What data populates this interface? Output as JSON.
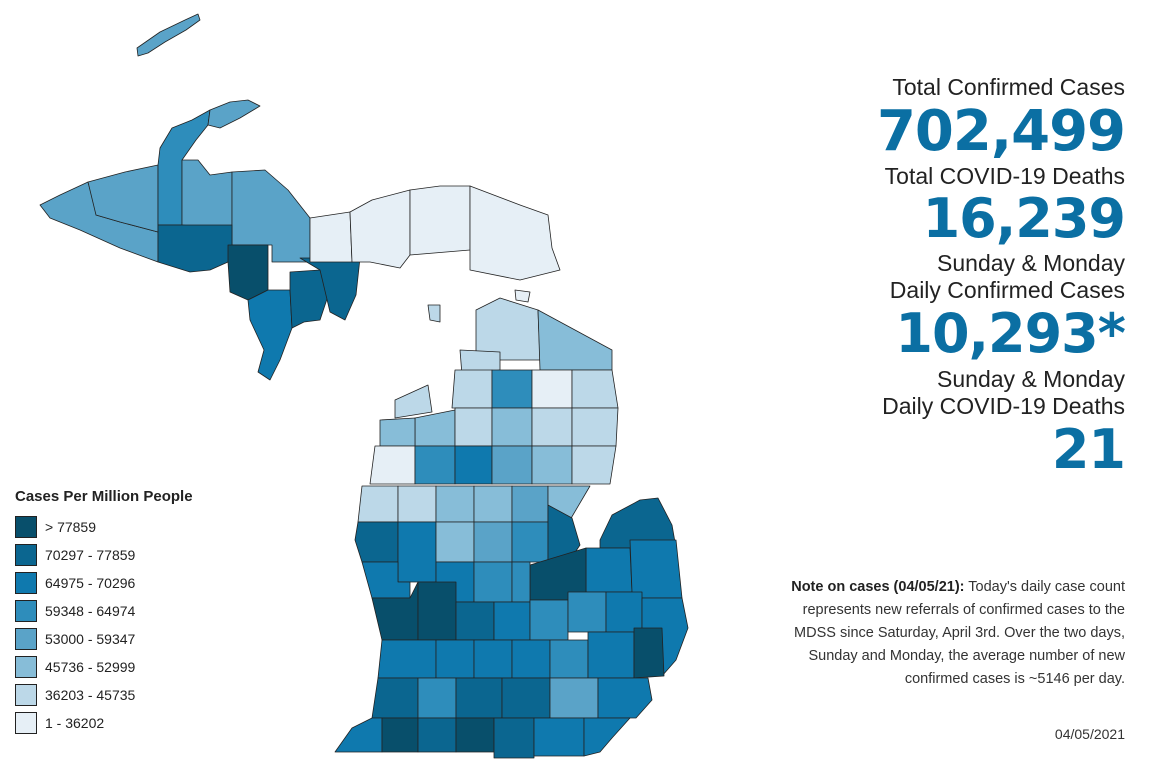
{
  "stats": {
    "total_cases_label": "Total Confirmed Cases",
    "total_cases_value": "702,499",
    "total_deaths_label": "Total COVID-19 Deaths",
    "total_deaths_value": "16,239",
    "daily_cases_label_1": "Sunday & Monday",
    "daily_cases_label_2": "Daily Confirmed Cases",
    "daily_cases_value": "10,293*",
    "daily_deaths_label_1": "Sunday & Monday",
    "daily_deaths_label_2": "Daily COVID-19 Deaths",
    "daily_deaths_value": "21"
  },
  "legend": {
    "title": "Cases Per Million People",
    "items": [
      {
        "label": "> 77859",
        "color": "#084f6b"
      },
      {
        "label": "70297 - 77859",
        "color": "#0b6690"
      },
      {
        "label": "64975 - 70296",
        "color": "#0f79ae"
      },
      {
        "label": "59348 - 64974",
        "color": "#2e8dbb"
      },
      {
        "label": "53000 - 59347",
        "color": "#5aa3c8"
      },
      {
        "label": "45736 - 52999",
        "color": "#87bdd8"
      },
      {
        "label": "36203 - 45735",
        "color": "#bcd8e8"
      },
      {
        "label": "1 - 36202",
        "color": "#e6eff6"
      }
    ]
  },
  "note": {
    "heading": "Note on cases (04/05/21):",
    "text": "Today's daily case count represents new referrals of confirmed cases to the MDSS since Saturday, April 3rd.  Over the two days, Sunday and Monday, the average number of new confirmed cases is ~5146 per day."
  },
  "date": "04/05/2021",
  "colors": {
    "accent": "#0b6fa3",
    "outline": "#222222"
  }
}
